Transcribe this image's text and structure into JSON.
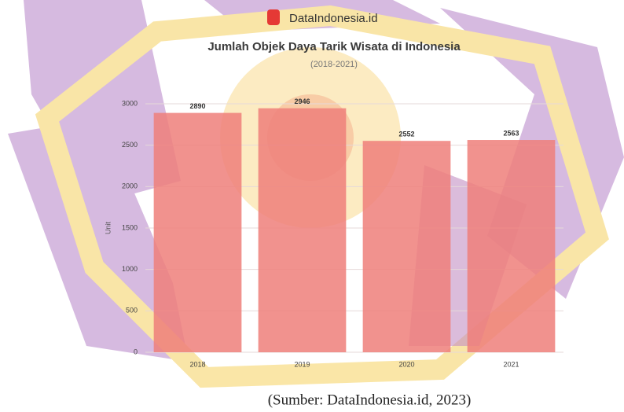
{
  "brand": "DataIndonesia.id",
  "chart_data": {
    "type": "bar",
    "title": "Jumlah Objek Daya Tarik Wisata di Indonesia",
    "subtitle": "(2018-2021)",
    "y_label": "Unit",
    "categories": [
      "2018",
      "2019",
      "2020",
      "2021"
    ],
    "values": [
      2890,
      2946,
      2552,
      2563
    ],
    "color": "#ee7f7a",
    "ylim": [
      0,
      3000
    ],
    "yticks": [
      0,
      500,
      1000,
      1500,
      2000,
      2500,
      3000
    ],
    "grid": true
  },
  "source": "(Sumber: DataIndonesia.id, 2023)"
}
